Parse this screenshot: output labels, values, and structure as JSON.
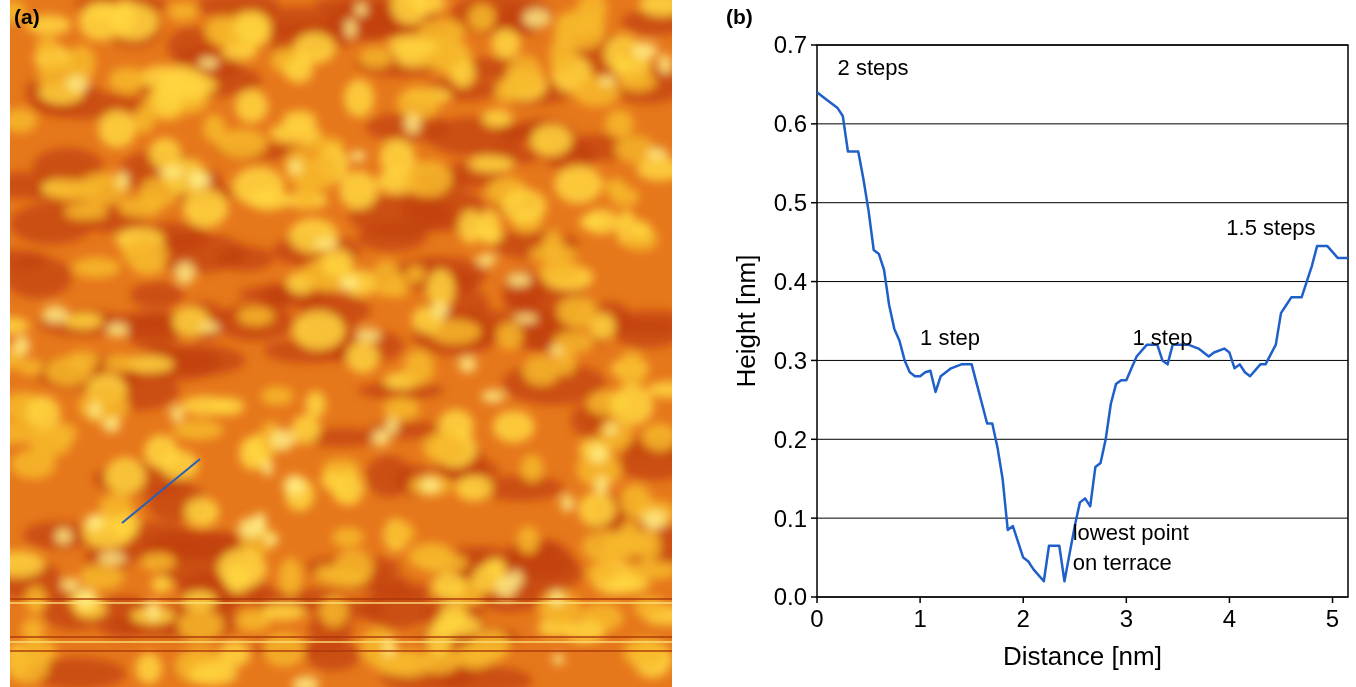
{
  "panel_labels": [
    "(a)",
    "(b)"
  ],
  "chart_data": {
    "type": "line",
    "x_label": "Distance [nm]",
    "y_label": "Height [nm]",
    "xlim": [
      0,
      5.15
    ],
    "ylim": [
      0,
      0.7
    ],
    "xticks": [
      0,
      1,
      2,
      3,
      4,
      5
    ],
    "yticks": [
      {
        "value": 0,
        "label": "0.0"
      },
      0.1,
      0.2,
      0.3,
      0.4,
      0.5,
      0.6,
      0.7
    ],
    "grid": true,
    "series": [
      {
        "color": "#1f5fc9",
        "x": [
          0,
          0.1,
          0.2,
          0.25,
          0.3,
          0.4,
          0.45,
          0.5,
          0.55,
          0.6,
          0.65,
          0.7,
          0.75,
          0.8,
          0.85,
          0.9,
          0.95,
          1.0,
          1.05,
          1.1,
          1.15,
          1.2,
          1.3,
          1.4,
          1.5,
          1.55,
          1.6,
          1.65,
          1.7,
          1.75,
          1.8,
          1.85,
          1.9,
          1.95,
          2.0,
          2.05,
          2.1,
          2.2,
          2.25,
          2.35,
          2.4,
          2.45,
          2.5,
          2.55,
          2.6,
          2.65,
          2.7,
          2.75,
          2.8,
          2.85,
          2.9,
          2.95,
          3.0,
          3.05,
          3.1,
          3.2,
          3.3,
          3.35,
          3.4,
          3.45,
          3.6,
          3.7,
          3.8,
          3.85,
          3.95,
          4.0,
          4.05,
          4.1,
          4.15,
          4.2,
          4.3,
          4.35,
          4.45,
          4.5,
          4.55,
          4.6,
          4.7,
          4.75,
          4.8,
          4.85,
          4.95,
          5.05,
          5.15
        ],
        "values": [
          0.64,
          0.63,
          0.62,
          0.61,
          0.565,
          0.565,
          0.53,
          0.49,
          0.44,
          0.435,
          0.415,
          0.37,
          0.34,
          0.325,
          0.3,
          0.285,
          0.28,
          0.28,
          0.285,
          0.287,
          0.26,
          0.28,
          0.29,
          0.295,
          0.295,
          0.27,
          0.245,
          0.22,
          0.22,
          0.19,
          0.15,
          0.085,
          0.09,
          0.07,
          0.05,
          0.045,
          0.035,
          0.02,
          0.065,
          0.065,
          0.02,
          0.055,
          0.09,
          0.12,
          0.125,
          0.115,
          0.165,
          0.17,
          0.2,
          0.245,
          0.27,
          0.275,
          0.275,
          0.29,
          0.305,
          0.32,
          0.32,
          0.3,
          0.295,
          0.32,
          0.32,
          0.315,
          0.305,
          0.31,
          0.315,
          0.31,
          0.29,
          0.295,
          0.285,
          0.28,
          0.295,
          0.295,
          0.32,
          0.36,
          0.37,
          0.38,
          0.38,
          0.4,
          0.42,
          0.445,
          0.445,
          0.43,
          0.43
        ]
      }
    ],
    "annotations": [
      {
        "text": "2 steps",
        "x": 0.2,
        "y": 0.662
      },
      {
        "text": "1 step",
        "x": 1.0,
        "y": 0.32
      },
      {
        "text": "1 step",
        "x": 3.06,
        "y": 0.32
      },
      {
        "text": "1.5 steps",
        "x": 3.97,
        "y": 0.459
      },
      {
        "text": "lowest point\non terrace",
        "x": 2.48,
        "y": 0.072
      }
    ]
  }
}
